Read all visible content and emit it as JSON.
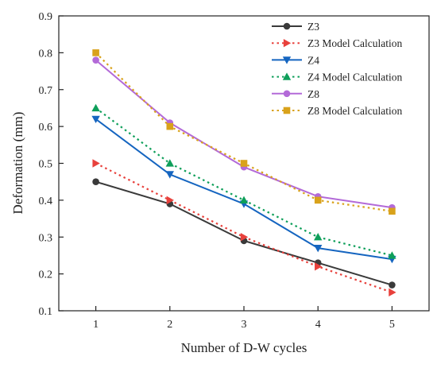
{
  "chart_data": {
    "type": "line",
    "xlabel": "Number of D-W cycles",
    "ylabel": "Deformation (mm)",
    "x": [
      1,
      2,
      3,
      4,
      5
    ],
    "xlim": [
      0.5,
      5.5
    ],
    "ylim": [
      0.1,
      0.9
    ],
    "xticks": [
      "1",
      "2",
      "3",
      "4",
      "5"
    ],
    "yticks": [
      "0.1",
      "0.2",
      "0.3",
      "0.4",
      "0.5",
      "0.6",
      "0.7",
      "0.8",
      "0.9"
    ],
    "grid": false,
    "legend_position": "top-right",
    "series": [
      {
        "name": "Z3",
        "values": [
          0.45,
          0.39,
          0.29,
          0.23,
          0.17
        ],
        "color": "#3a3a3a",
        "line_style": "solid",
        "marker": "circle"
      },
      {
        "name": "Z3 Model Calculation",
        "values": [
          0.5,
          0.4,
          0.3,
          0.22,
          0.15
        ],
        "color": "#e8413c",
        "line_style": "dotted",
        "marker": "triangle-right"
      },
      {
        "name": "Z4",
        "values": [
          0.62,
          0.47,
          0.39,
          0.27,
          0.24
        ],
        "color": "#1565c0",
        "line_style": "solid",
        "marker": "triangle-down"
      },
      {
        "name": "Z4 Model Calculation",
        "values": [
          0.65,
          0.5,
          0.4,
          0.3,
          0.25
        ],
        "color": "#0e9f5a",
        "line_style": "dotted",
        "marker": "triangle-up"
      },
      {
        "name": "Z8",
        "values": [
          0.78,
          0.61,
          0.49,
          0.41,
          0.38
        ],
        "color": "#b36ad8",
        "line_style": "solid",
        "marker": "circle"
      },
      {
        "name": "Z8 Model Calculation",
        "values": [
          0.8,
          0.6,
          0.5,
          0.4,
          0.37
        ],
        "color": "#d9a21b",
        "line_style": "dotted",
        "marker": "square"
      }
    ]
  }
}
